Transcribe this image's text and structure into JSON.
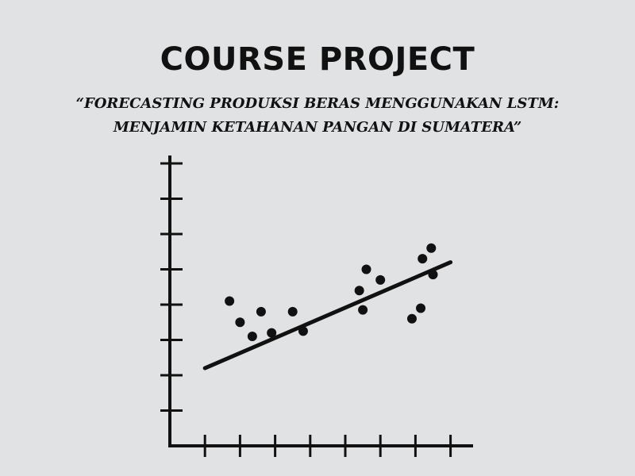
{
  "header": {
    "title": "COURSE PROJECT",
    "subtitle_line1": "“FORECASTING PRODUKSI BERAS MENGGUNAKAN LSTM:",
    "subtitle_line2": "MENJAMIN KETAHANAN PANGAN DI SUMATERA”"
  },
  "illustration": {
    "icon": "scatter-plot-icon",
    "color": "#111111",
    "points": [
      [
        1.7,
        4.1
      ],
      [
        2.0,
        3.5
      ],
      [
        2.35,
        3.1
      ],
      [
        2.6,
        3.8
      ],
      [
        2.9,
        3.2
      ],
      [
        3.5,
        3.8
      ],
      [
        3.8,
        3.25
      ],
      [
        5.4,
        4.4
      ],
      [
        5.5,
        3.85
      ],
      [
        5.6,
        5.0
      ],
      [
        6.0,
        4.7
      ],
      [
        6.9,
        3.6
      ],
      [
        7.15,
        3.9
      ],
      [
        7.2,
        5.3
      ],
      [
        7.45,
        5.6
      ],
      [
        7.5,
        4.85
      ]
    ],
    "trend_line": [
      [
        1.0,
        2.2
      ],
      [
        8.0,
        5.2
      ]
    ]
  }
}
